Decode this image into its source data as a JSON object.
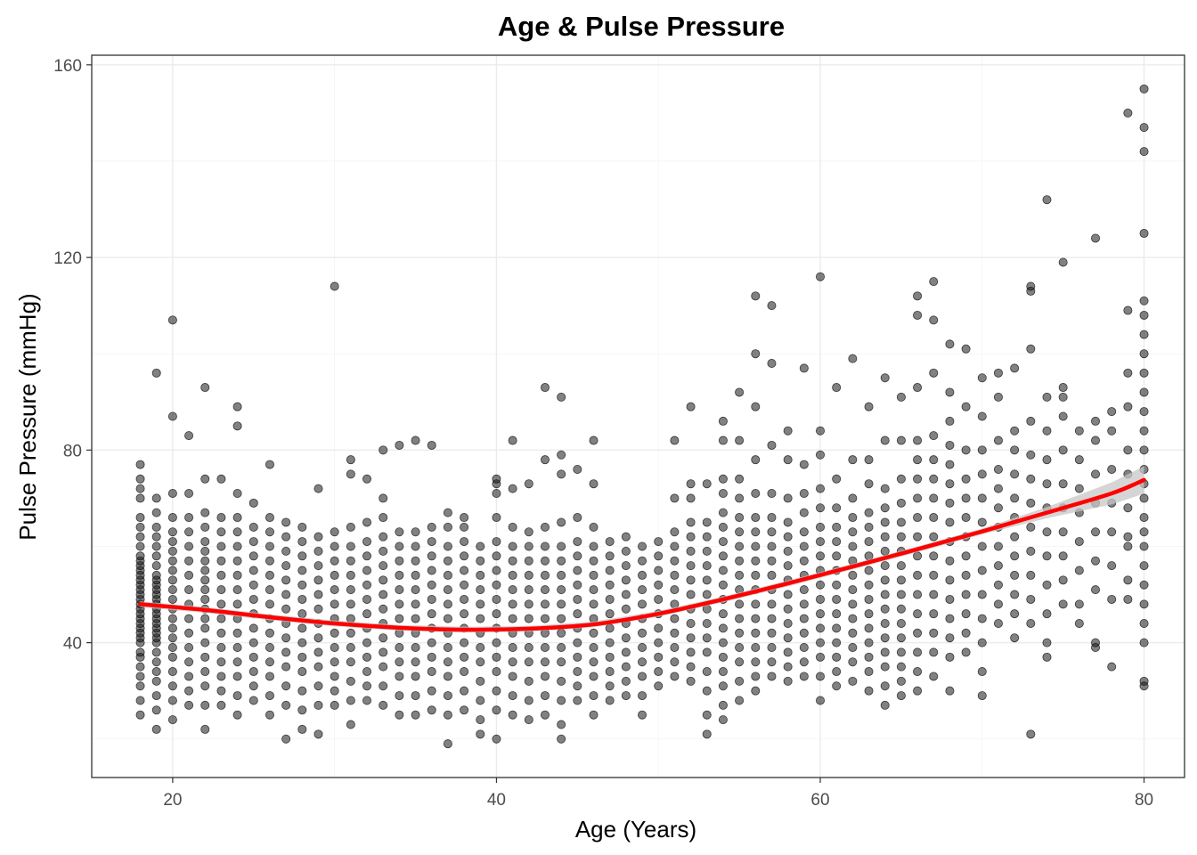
{
  "chart_data": {
    "type": "scatter",
    "title": "Age & Pulse Pressure",
    "xlabel": "Age (Years)",
    "ylabel": "Pulse Pressure (mmHg)",
    "xlim": [
      15,
      82.5
    ],
    "ylim": [
      12,
      162
    ],
    "x_ticks": [
      20,
      40,
      60,
      80
    ],
    "y_ticks": [
      40,
      80,
      120,
      160
    ],
    "grid": true,
    "legend": "none",
    "points_per_age": {
      "18": [
        25,
        28,
        31,
        33,
        35,
        37,
        38,
        40,
        41,
        42,
        43,
        44,
        45,
        46,
        47,
        48,
        49,
        50,
        51,
        52,
        53,
        54,
        55,
        56,
        57,
        58,
        60,
        62,
        64,
        66,
        70,
        72,
        74,
        77
      ],
      "19": [
        22,
        26,
        29,
        32,
        34,
        36,
        38,
        40,
        41,
        42,
        43,
        44,
        45,
        46,
        47,
        48,
        49,
        50,
        51,
        52,
        53,
        54,
        56,
        58,
        60,
        62,
        64,
        67,
        70,
        96
      ],
      "20": [
        24,
        28,
        31,
        34,
        37,
        39,
        41,
        43,
        45,
        47,
        49,
        51,
        53,
        55,
        57,
        59,
        61,
        63,
        66,
        71,
        87,
        107
      ],
      "21": [
        27,
        30,
        33,
        36,
        39,
        42,
        45,
        48,
        51,
        54,
        57,
        60,
        63,
        66,
        71,
        83
      ],
      "22": [
        22,
        27,
        31,
        34,
        37,
        40,
        43,
        45,
        47,
        49,
        51,
        53,
        55,
        57,
        59,
        61,
        64,
        67,
        74,
        93
      ],
      "23": [
        27,
        30,
        33,
        36,
        39,
        42,
        45,
        48,
        51,
        54,
        57,
        60,
        63,
        66,
        74
      ],
      "24": [
        25,
        29,
        33,
        36,
        39,
        42,
        45,
        48,
        51,
        54,
        57,
        60,
        63,
        66,
        71,
        85,
        89
      ],
      "25": [
        28,
        31,
        34,
        37,
        40,
        43,
        46,
        49,
        52,
        55,
        58,
        61,
        64,
        69
      ],
      "26": [
        25,
        29,
        33,
        36,
        39,
        42,
        45,
        48,
        51,
        54,
        57,
        60,
        63,
        66,
        77
      ],
      "27": [
        20,
        27,
        31,
        35,
        38,
        41,
        44,
        47,
        50,
        53,
        56,
        59,
        62,
        65
      ],
      "28": [
        22,
        26,
        30,
        34,
        37,
        40,
        43,
        46,
        49,
        52,
        55,
        58,
        61,
        64
      ],
      "29": [
        21,
        27,
        31,
        35,
        38,
        41,
        44,
        47,
        50,
        53,
        56,
        59,
        62,
        72
      ],
      "30": [
        27,
        30,
        33,
        36,
        39,
        42,
        45,
        48,
        51,
        54,
        57,
        60,
        63,
        114
      ],
      "31": [
        23,
        28,
        32,
        36,
        39,
        42,
        45,
        48,
        51,
        54,
        57,
        60,
        64,
        75,
        78
      ],
      "32": [
        28,
        31,
        34,
        37,
        40,
        43,
        46,
        49,
        52,
        55,
        58,
        61,
        65,
        74
      ],
      "33": [
        27,
        31,
        35,
        38,
        41,
        44,
        47,
        50,
        53,
        56,
        59,
        62,
        66,
        70,
        80
      ],
      "34": [
        25,
        29,
        33,
        36,
        39,
        42,
        45,
        48,
        51,
        54,
        57,
        60,
        63,
        81
      ],
      "35": [
        25,
        29,
        33,
        36,
        39,
        42,
        45,
        48,
        51,
        54,
        57,
        60,
        63,
        82
      ],
      "36": [
        26,
        30,
        34,
        37,
        40,
        43,
        46,
        49,
        52,
        55,
        58,
        61,
        64,
        81
      ],
      "37": [
        19,
        25,
        29,
        33,
        36,
        39,
        42,
        45,
        48,
        51,
        54,
        57,
        60,
        64,
        67
      ],
      "38": [
        26,
        30,
        34,
        37,
        40,
        43,
        46,
        49,
        52,
        55,
        58,
        61,
        64,
        66
      ],
      "39": [
        21,
        24,
        28,
        32,
        36,
        39,
        42,
        45,
        48,
        51,
        54,
        57,
        60
      ],
      "40": [
        20,
        26,
        30,
        34,
        37,
        40,
        43,
        46,
        49,
        52,
        55,
        58,
        61,
        66,
        71,
        73,
        74
      ],
      "41": [
        25,
        29,
        33,
        36,
        39,
        42,
        45,
        48,
        51,
        54,
        57,
        60,
        64,
        72,
        82
      ],
      "42": [
        24,
        28,
        32,
        36,
        39,
        42,
        45,
        48,
        51,
        54,
        57,
        60,
        63,
        73
      ],
      "43": [
        25,
        29,
        33,
        36,
        39,
        42,
        45,
        48,
        51,
        54,
        57,
        60,
        64,
        78,
        93
      ],
      "44": [
        20,
        23,
        28,
        32,
        36,
        39,
        42,
        45,
        48,
        51,
        54,
        57,
        60,
        65,
        75,
        79,
        91
      ],
      "45": [
        28,
        31,
        34,
        37,
        40,
        43,
        46,
        49,
        52,
        55,
        58,
        61,
        66,
        76
      ],
      "46": [
        25,
        29,
        33,
        36,
        39,
        42,
        45,
        48,
        51,
        54,
        57,
        60,
        64,
        73,
        82
      ],
      "47": [
        28,
        31,
        34,
        37,
        40,
        43,
        46,
        49,
        52,
        55,
        58,
        61
      ],
      "48": [
        29,
        32,
        35,
        38,
        41,
        44,
        47,
        50,
        53,
        56,
        59,
        62
      ],
      "49": [
        25,
        29,
        33,
        36,
        39,
        42,
        45,
        48,
        51,
        54,
        57,
        60
      ],
      "50": [
        31,
        34,
        37,
        40,
        43,
        46,
        49,
        52,
        55,
        58,
        61
      ],
      "51": [
        33,
        36,
        39,
        42,
        45,
        48,
        51,
        54,
        57,
        60,
        63,
        70,
        82
      ],
      "52": [
        32,
        35,
        38,
        41,
        44,
        47,
        50,
        53,
        56,
        59,
        62,
        65,
        70,
        73,
        89
      ],
      "53": [
        21,
        25,
        30,
        34,
        38,
        41,
        44,
        47,
        50,
        53,
        56,
        59,
        62,
        65,
        73
      ],
      "54": [
        24,
        27,
        31,
        34,
        37,
        40,
        43,
        46,
        49,
        52,
        55,
        58,
        61,
        64,
        67,
        71,
        74,
        82,
        86
      ],
      "55": [
        28,
        32,
        36,
        39,
        42,
        45,
        48,
        51,
        54,
        57,
        60,
        63,
        66,
        70,
        74,
        82,
        92
      ],
      "56": [
        30,
        33,
        36,
        39,
        42,
        45,
        48,
        51,
        54,
        57,
        60,
        63,
        66,
        71,
        78,
        89,
        100,
        112
      ],
      "57": [
        33,
        36,
        39,
        42,
        45,
        48,
        51,
        54,
        57,
        60,
        63,
        66,
        71,
        81,
        98,
        110
      ],
      "58": [
        32,
        35,
        38,
        41,
        44,
        47,
        50,
        53,
        56,
        59,
        62,
        65,
        70,
        78,
        84
      ],
      "59": [
        33,
        36,
        39,
        42,
        45,
        48,
        51,
        54,
        57,
        60,
        63,
        67,
        71,
        77,
        97
      ],
      "60": [
        28,
        33,
        37,
        40,
        43,
        46,
        49,
        52,
        55,
        58,
        61,
        64,
        68,
        72,
        79,
        84,
        116
      ],
      "61": [
        31,
        34,
        37,
        40,
        43,
        46,
        49,
        52,
        55,
        58,
        61,
        64,
        68,
        74,
        93
      ],
      "62": [
        32,
        36,
        39,
        42,
        45,
        48,
        51,
        54,
        57,
        60,
        63,
        66,
        70,
        78,
        99
      ],
      "63": [
        30,
        34,
        37,
        40,
        43,
        46,
        49,
        52,
        55,
        58,
        61,
        64,
        67,
        73,
        78,
        89
      ],
      "64": [
        27,
        31,
        35,
        38,
        41,
        44,
        47,
        50,
        53,
        56,
        59,
        62,
        65,
        68,
        72,
        82,
        95
      ],
      "65": [
        29,
        32,
        35,
        38,
        41,
        44,
        47,
        50,
        53,
        56,
        59,
        62,
        65,
        69,
        74,
        82,
        91
      ],
      "66": [
        30,
        34,
        38,
        42,
        46,
        50,
        54,
        58,
        62,
        66,
        70,
        74,
        78,
        82,
        93,
        108,
        112
      ],
      "67": [
        33,
        38,
        42,
        46,
        50,
        54,
        58,
        62,
        66,
        70,
        74,
        78,
        83,
        96,
        107,
        115
      ],
      "68": [
        30,
        37,
        41,
        45,
        49,
        53,
        57,
        61,
        65,
        69,
        73,
        77,
        81,
        86,
        92,
        102
      ],
      "69": [
        38,
        42,
        46,
        50,
        54,
        58,
        62,
        66,
        70,
        74,
        80,
        89,
        101
      ],
      "70": [
        29,
        34,
        40,
        45,
        50,
        55,
        60,
        65,
        70,
        75,
        80,
        87,
        95
      ],
      "71": [
        44,
        48,
        52,
        56,
        60,
        64,
        68,
        72,
        76,
        82,
        91,
        96
      ],
      "72": [
        41,
        46,
        50,
        54,
        58,
        62,
        66,
        70,
        75,
        80,
        84,
        97
      ],
      "73": [
        21,
        44,
        49,
        54,
        59,
        64,
        69,
        74,
        79,
        86,
        101,
        113,
        114
      ],
      "74": [
        37,
        40,
        46,
        52,
        58,
        63,
        68,
        73,
        78,
        84,
        91,
        132
      ],
      "75": [
        48,
        53,
        58,
        63,
        68,
        73,
        80,
        87,
        91,
        93,
        119
      ],
      "76": [
        44,
        48,
        55,
        61,
        67,
        72,
        78,
        84
      ],
      "77": [
        39,
        40,
        51,
        57,
        63,
        69,
        75,
        82,
        86,
        124
      ],
      "78": [
        35,
        49,
        56,
        63,
        69,
        76,
        84,
        88
      ],
      "79": [
        49,
        53,
        60,
        62,
        68,
        75,
        80,
        89,
        96,
        109,
        150
      ],
      "80": [
        31,
        32,
        40,
        44,
        48,
        52,
        56,
        60,
        63,
        66,
        70,
        73,
        76,
        80,
        84,
        88,
        92,
        96,
        100,
        104,
        108,
        111,
        125,
        142,
        147,
        155
      ]
    },
    "trend": {
      "label": "",
      "x": [
        18,
        22,
        26,
        30,
        34,
        38,
        42,
        46,
        50,
        54,
        58,
        62,
        66,
        70,
        74,
        78,
        80
      ],
      "y": [
        48,
        46.8,
        45.3,
        44,
        43.1,
        42.7,
        42.9,
        43.8,
        46,
        49,
        52.3,
        55.8,
        59.4,
        63.1,
        67,
        71,
        73.8
      ]
    }
  }
}
